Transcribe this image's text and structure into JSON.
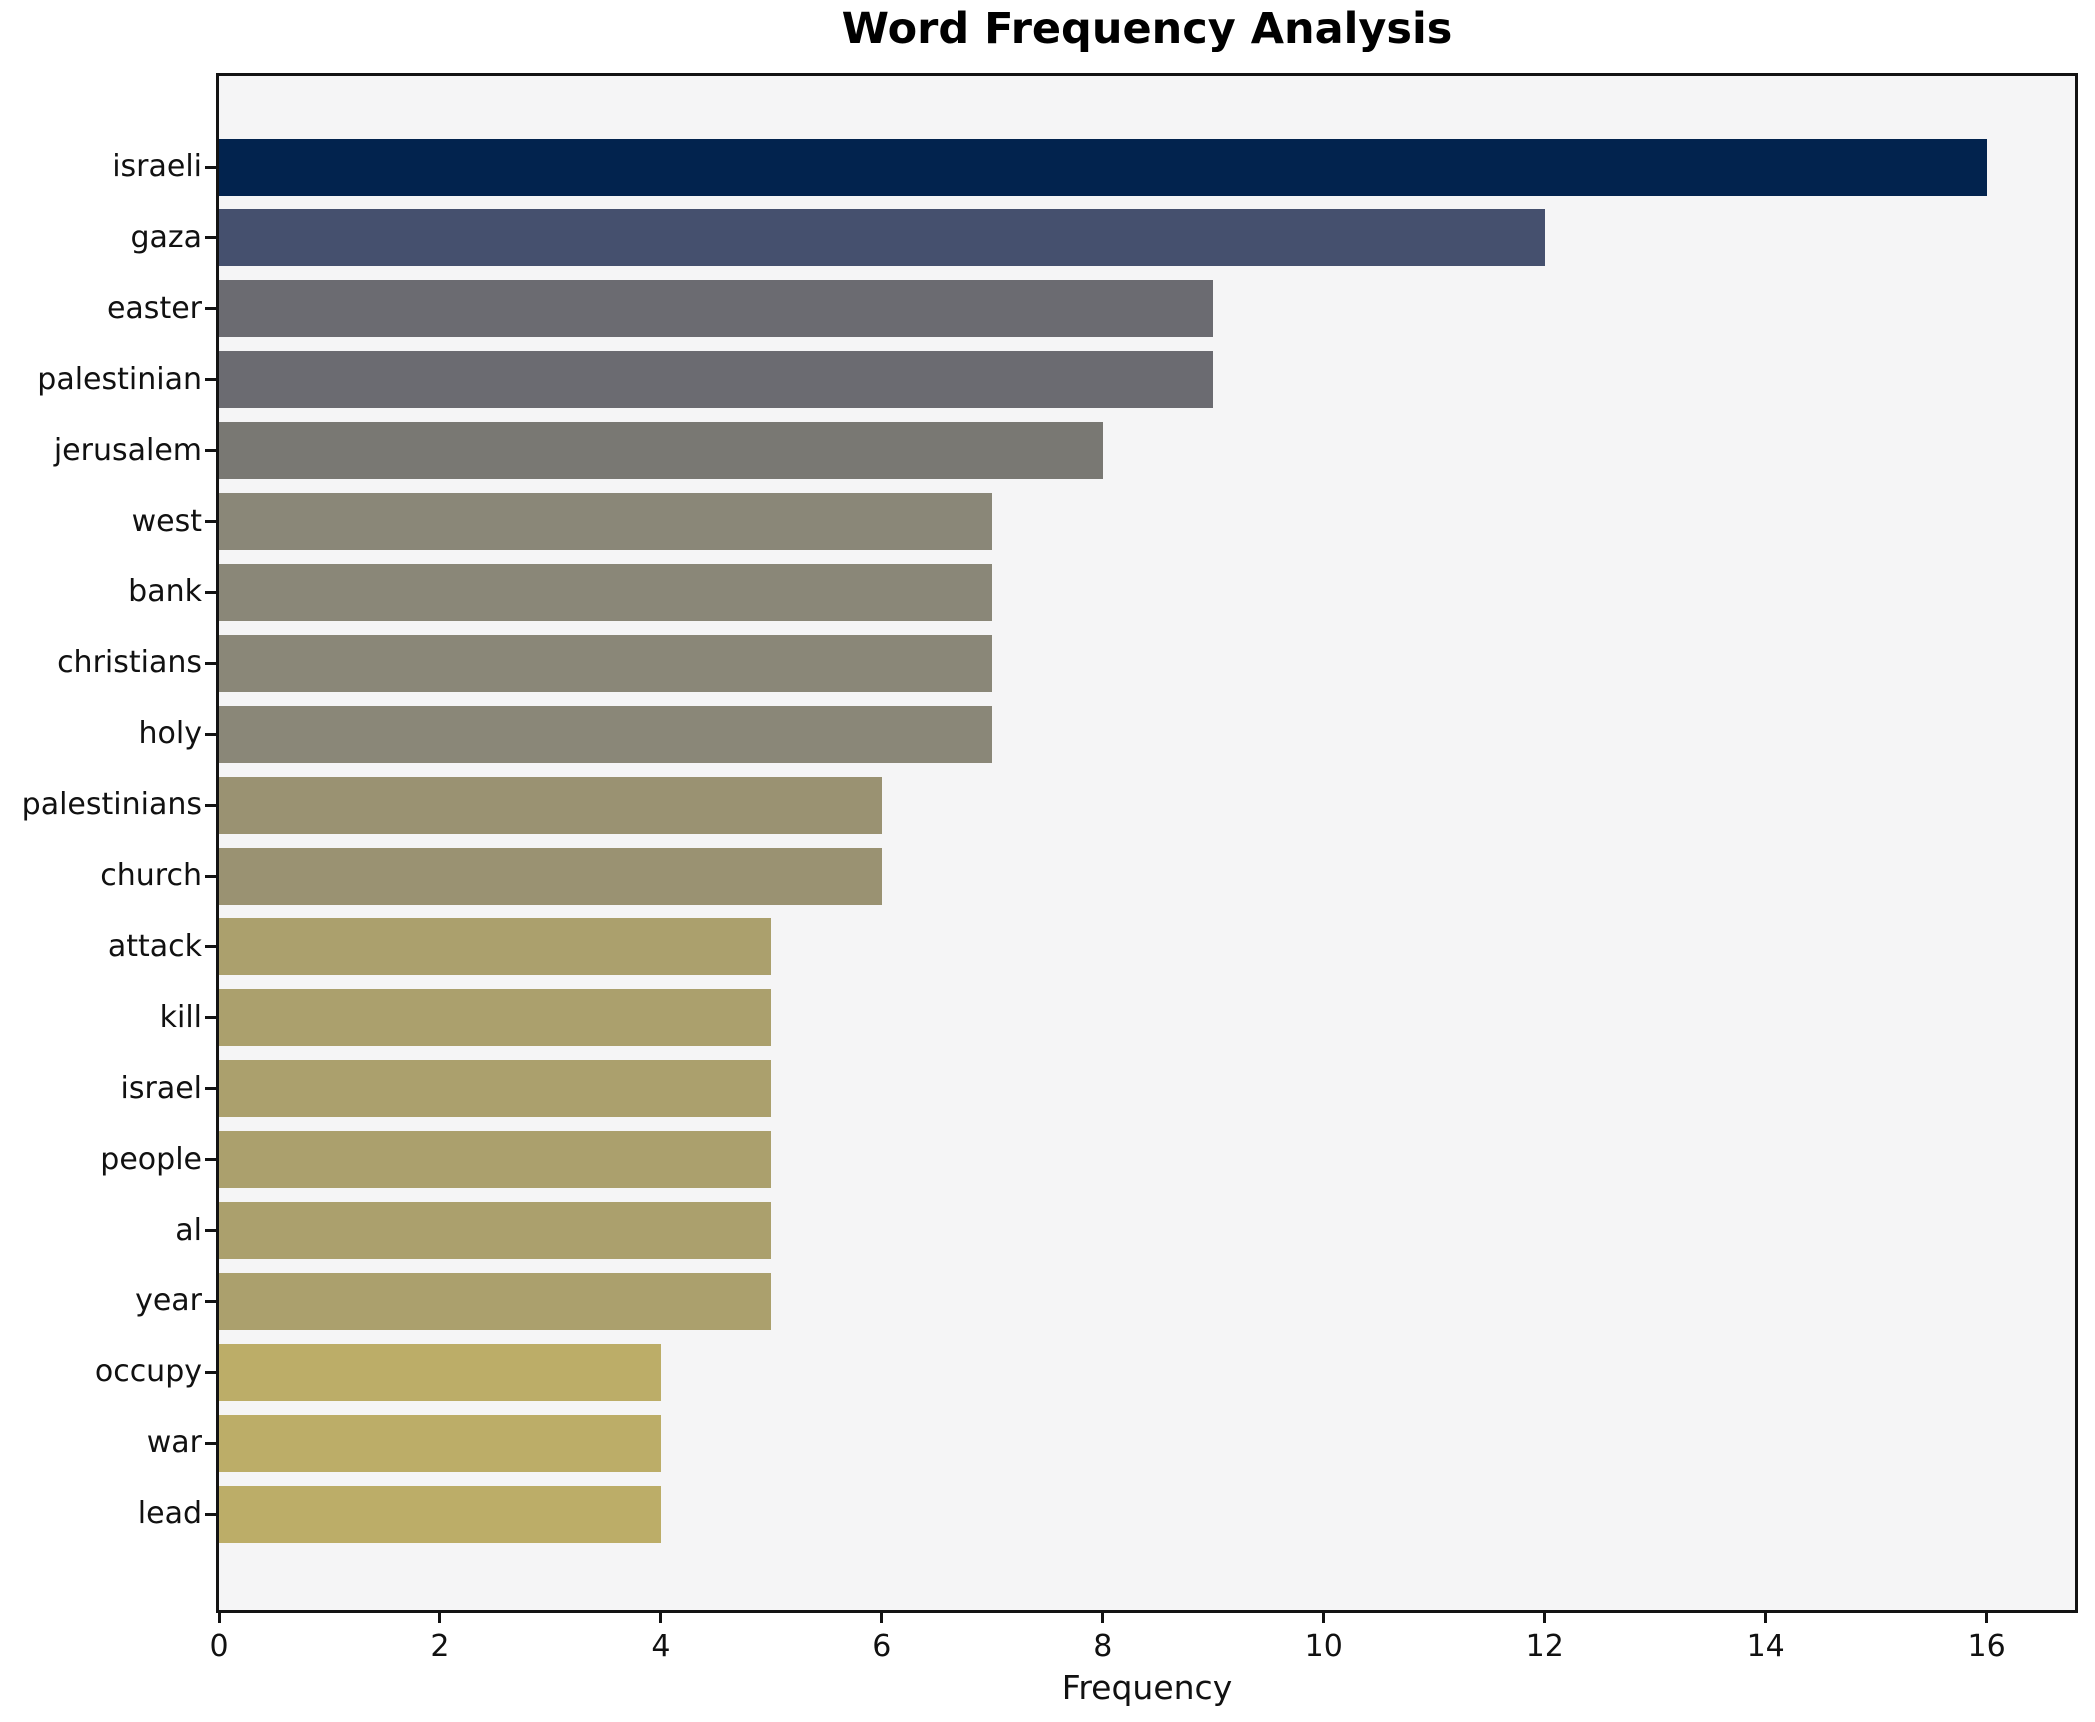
{
  "title": "Word Frequency Analysis",
  "chart_data": {
    "type": "bar",
    "orientation": "horizontal",
    "title": "Word Frequency Analysis",
    "xlabel": "Frequency",
    "ylabel": "",
    "categories": [
      "israeli",
      "gaza",
      "easter",
      "palestinian",
      "jerusalem",
      "west",
      "bank",
      "christians",
      "holy",
      "palestinians",
      "church",
      "attack",
      "kill",
      "israel",
      "people",
      "al",
      "year",
      "occupy",
      "war",
      "lead"
    ],
    "values": [
      16,
      12,
      9,
      9,
      8,
      7,
      7,
      7,
      7,
      6,
      6,
      5,
      5,
      5,
      5,
      5,
      5,
      4,
      4,
      4
    ],
    "bar_colors": [
      "#02234E",
      "#45506E",
      "#6B6B71",
      "#6B6B71",
      "#797873",
      "#8A8778",
      "#8A8778",
      "#8A8778",
      "#8A8778",
      "#9A9272",
      "#9A9272",
      "#ABA06D",
      "#ABA06D",
      "#ABA06D",
      "#ABA06D",
      "#ABA06D",
      "#ABA06D",
      "#BCAD68",
      "#BCAD68",
      "#BCAD68"
    ],
    "x_ticks": [
      0,
      2,
      4,
      6,
      8,
      10,
      12,
      14,
      16
    ],
    "xlim": [
      0,
      16.8
    ],
    "grid": false,
    "legend": null,
    "plot_bg": "#F5F5F6",
    "fig_bg": "#FFFFFF",
    "frame_color": "#131313"
  }
}
